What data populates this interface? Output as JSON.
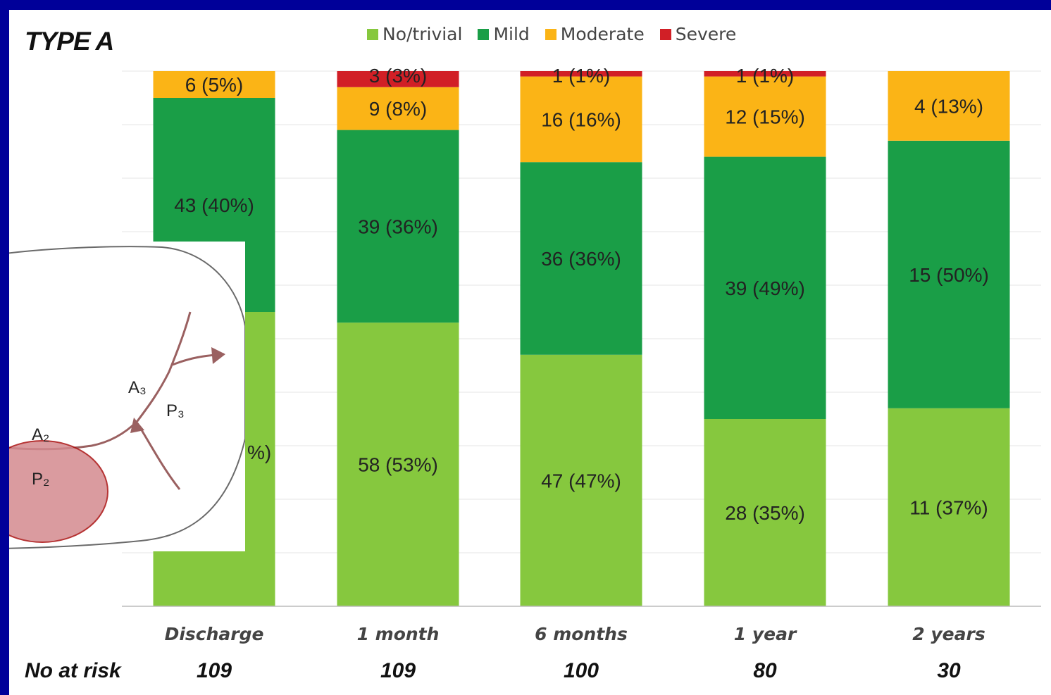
{
  "chart_data": {
    "type": "bar",
    "stacked": true,
    "title": "TYPE A",
    "categories": [
      "Discharge",
      "1 month",
      "6 months",
      "1 year",
      "2 years"
    ],
    "series": [
      {
        "name": "No/trivial",
        "color": "#86c83e",
        "values": [
          55,
          53,
          47,
          35,
          37
        ],
        "labels": [
          "",
          "58 (53%)",
          "47 (47%)",
          "28 (35%)",
          "11 (37%)"
        ]
      },
      {
        "name": "Mild",
        "color": "#1a9e47",
        "values": [
          40,
          36,
          36,
          49,
          50
        ],
        "labels": [
          "43 (40%)",
          "39 (36%)",
          "36 (36%)",
          "39 (49%)",
          "15 (50%)"
        ]
      },
      {
        "name": "Moderate",
        "color": "#fbb416",
        "values": [
          5,
          8,
          16,
          15,
          13
        ],
        "labels": [
          "6 (5%)",
          "9 (8%)",
          "16 (16%)",
          "12 (15%)",
          "4 (13%)"
        ]
      },
      {
        "name": "Severe",
        "color": "#d11f26",
        "values": [
          0,
          3,
          1,
          1,
          0
        ],
        "labels": [
          "",
          "3 (3%)",
          "1 (1%)",
          "1 (1%)",
          ""
        ]
      }
    ],
    "ylim": [
      0,
      100
    ],
    "grid": true,
    "legend_position": "top",
    "partial_label_discharge_no_trivial": "%)",
    "risk_table": {
      "label": "No at risk",
      "values": [
        "109",
        "109",
        "100",
        "80",
        "30"
      ]
    }
  },
  "inset": {
    "labels": {
      "a2": "A₂",
      "p2": "P₂",
      "a3": "A₃",
      "p3": "P₃"
    },
    "highlight_color": "#d48a8f"
  }
}
